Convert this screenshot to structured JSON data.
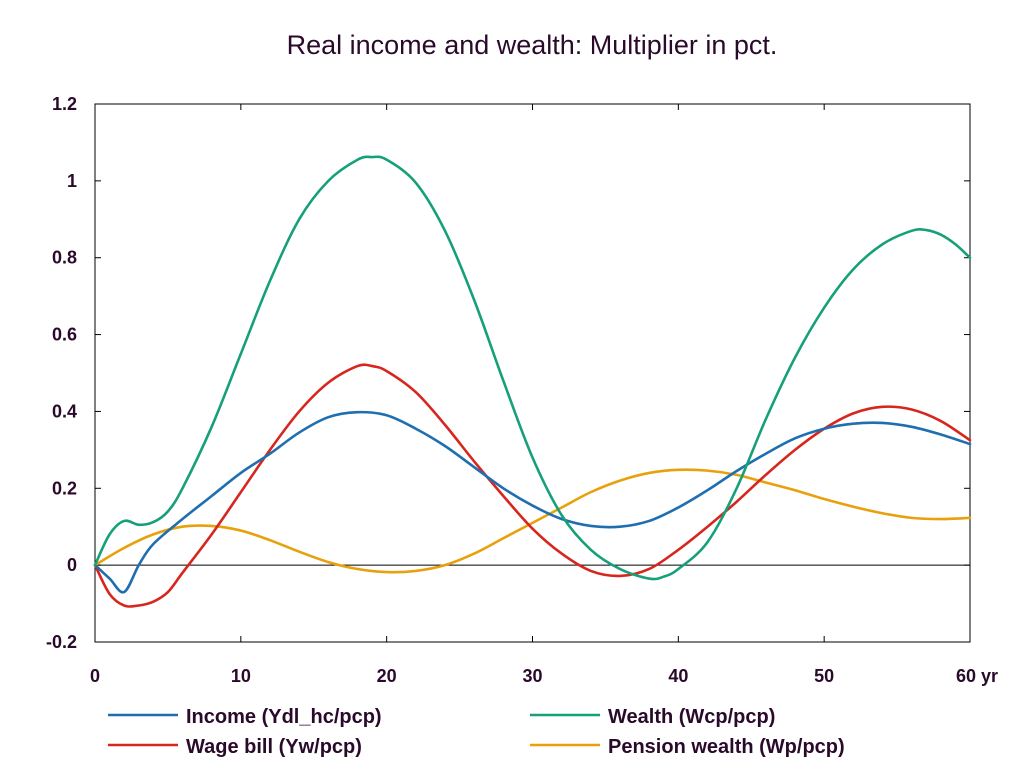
{
  "chart_data": {
    "type": "line",
    "title": "Real income and wealth: Multiplier in pct.",
    "x_unit": "yr",
    "xlim": [
      0,
      60
    ],
    "ylim": [
      -0.2,
      1.2
    ],
    "x_ticks": [
      0,
      10,
      20,
      30,
      40,
      50,
      60
    ],
    "y_ticks": [
      -0.2,
      0,
      0.2,
      0.4,
      0.6,
      0.8,
      1,
      1.2
    ],
    "x_tick_labels": [
      "0",
      "10",
      "20",
      "30",
      "40",
      "50",
      "60 yr"
    ],
    "y_tick_labels": [
      "-0.2",
      "0",
      "0.2",
      "0.4",
      "0.6",
      "0.8",
      "1",
      "1.2"
    ],
    "grid": false,
    "zero_line": true,
    "legend_position": "bottom",
    "series": [
      {
        "name": "Income (Ydl_hc/pcp)",
        "color": "#1f6fb0",
        "points": [
          [
            0,
            0
          ],
          [
            1,
            -0.035
          ],
          [
            2,
            -0.07
          ],
          [
            3,
            0
          ],
          [
            4,
            0.055
          ],
          [
            6,
            0.12
          ],
          [
            8,
            0.18
          ],
          [
            10,
            0.24
          ],
          [
            12,
            0.29
          ],
          [
            14,
            0.345
          ],
          [
            16,
            0.385
          ],
          [
            18,
            0.398
          ],
          [
            20,
            0.39
          ],
          [
            22,
            0.355
          ],
          [
            24,
            0.31
          ],
          [
            26,
            0.255
          ],
          [
            28,
            0.2
          ],
          [
            30,
            0.155
          ],
          [
            32,
            0.12
          ],
          [
            34,
            0.102
          ],
          [
            36,
            0.1
          ],
          [
            38,
            0.115
          ],
          [
            40,
            0.15
          ],
          [
            42,
            0.195
          ],
          [
            44,
            0.245
          ],
          [
            46,
            0.29
          ],
          [
            48,
            0.33
          ],
          [
            50,
            0.355
          ],
          [
            52,
            0.368
          ],
          [
            54,
            0.37
          ],
          [
            56,
            0.36
          ],
          [
            58,
            0.34
          ],
          [
            60,
            0.315
          ]
        ]
      },
      {
        "name": "Wealth (Wcp/pcp)",
        "color": "#16a07a",
        "points": [
          [
            0,
            0
          ],
          [
            1,
            0.08
          ],
          [
            2,
            0.115
          ],
          [
            3,
            0.105
          ],
          [
            4,
            0.112
          ],
          [
            5,
            0.14
          ],
          [
            6,
            0.2
          ],
          [
            8,
            0.36
          ],
          [
            10,
            0.55
          ],
          [
            12,
            0.74
          ],
          [
            14,
            0.9
          ],
          [
            16,
            1.0
          ],
          [
            18,
            1.055
          ],
          [
            19,
            1.062
          ],
          [
            20,
            1.055
          ],
          [
            22,
            0.995
          ],
          [
            24,
            0.87
          ],
          [
            26,
            0.69
          ],
          [
            28,
            0.48
          ],
          [
            30,
            0.28
          ],
          [
            32,
            0.13
          ],
          [
            34,
            0.04
          ],
          [
            36,
            -0.01
          ],
          [
            38,
            -0.035
          ],
          [
            39,
            -0.03
          ],
          [
            40,
            -0.01
          ],
          [
            42,
            0.06
          ],
          [
            44,
            0.2
          ],
          [
            46,
            0.38
          ],
          [
            48,
            0.54
          ],
          [
            50,
            0.67
          ],
          [
            52,
            0.77
          ],
          [
            54,
            0.835
          ],
          [
            56,
            0.87
          ],
          [
            57,
            0.872
          ],
          [
            58,
            0.86
          ],
          [
            59,
            0.835
          ],
          [
            60,
            0.8
          ]
        ]
      },
      {
        "name": "Wage bill (Yw/pcp)",
        "color": "#d7261e",
        "points": [
          [
            0,
            0
          ],
          [
            1,
            -0.075
          ],
          [
            2,
            -0.105
          ],
          [
            3,
            -0.105
          ],
          [
            4,
            -0.095
          ],
          [
            5,
            -0.07
          ],
          [
            6,
            -0.02
          ],
          [
            8,
            0.08
          ],
          [
            10,
            0.19
          ],
          [
            12,
            0.3
          ],
          [
            14,
            0.4
          ],
          [
            16,
            0.475
          ],
          [
            18,
            0.518
          ],
          [
            19,
            0.518
          ],
          [
            20,
            0.505
          ],
          [
            22,
            0.45
          ],
          [
            24,
            0.365
          ],
          [
            26,
            0.27
          ],
          [
            28,
            0.18
          ],
          [
            30,
            0.095
          ],
          [
            32,
            0.03
          ],
          [
            34,
            -0.015
          ],
          [
            36,
            -0.028
          ],
          [
            38,
            -0.01
          ],
          [
            40,
            0.04
          ],
          [
            42,
            0.1
          ],
          [
            44,
            0.165
          ],
          [
            46,
            0.235
          ],
          [
            48,
            0.3
          ],
          [
            50,
            0.355
          ],
          [
            52,
            0.395
          ],
          [
            54,
            0.412
          ],
          [
            56,
            0.405
          ],
          [
            58,
            0.375
          ],
          [
            60,
            0.325
          ]
        ]
      },
      {
        "name": "Pension wealth (Wp/pcp)",
        "color": "#e8a10c",
        "points": [
          [
            0,
            0
          ],
          [
            2,
            0.045
          ],
          [
            4,
            0.08
          ],
          [
            6,
            0.1
          ],
          [
            8,
            0.102
          ],
          [
            10,
            0.09
          ],
          [
            12,
            0.065
          ],
          [
            14,
            0.035
          ],
          [
            16,
            0.008
          ],
          [
            18,
            -0.01
          ],
          [
            20,
            -0.018
          ],
          [
            22,
            -0.015
          ],
          [
            24,
            0.0
          ],
          [
            26,
            0.03
          ],
          [
            28,
            0.07
          ],
          [
            30,
            0.11
          ],
          [
            32,
            0.15
          ],
          [
            34,
            0.19
          ],
          [
            36,
            0.22
          ],
          [
            38,
            0.24
          ],
          [
            40,
            0.248
          ],
          [
            42,
            0.246
          ],
          [
            44,
            0.235
          ],
          [
            46,
            0.215
          ],
          [
            48,
            0.195
          ],
          [
            50,
            0.172
          ],
          [
            52,
            0.152
          ],
          [
            54,
            0.135
          ],
          [
            56,
            0.123
          ],
          [
            58,
            0.12
          ],
          [
            60,
            0.123
          ]
        ]
      }
    ]
  }
}
